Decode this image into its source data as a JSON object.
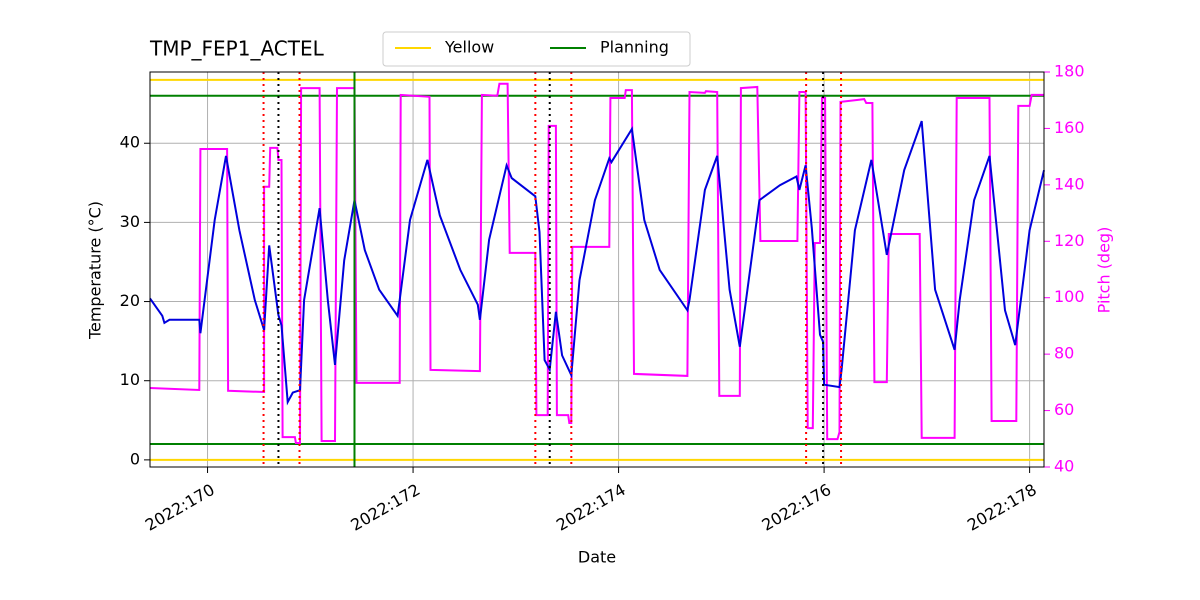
{
  "chart_data": {
    "type": "line",
    "title": "TMP_FEP1_ACTEL",
    "x_label": "Date",
    "y_label": "Temperature (°C)",
    "y2_label": "Pitch (deg)",
    "y2_color": "#ff00ff",
    "xlim": [
      169.44,
      178.14
    ],
    "ylim": [
      -0.9,
      49
    ],
    "y2lim": [
      40,
      180
    ],
    "xticks": [
      {
        "value": 170,
        "label": "2022:170"
      },
      {
        "value": 172,
        "label": "2022:172"
      },
      {
        "value": 174,
        "label": "2022:174"
      },
      {
        "value": 176,
        "label": "2022:176"
      },
      {
        "value": 178,
        "label": "2022:178"
      }
    ],
    "yticks": [
      0,
      10,
      20,
      30,
      40
    ],
    "y2ticks": [
      40,
      60,
      80,
      100,
      120,
      140,
      160,
      180
    ],
    "grid": true,
    "series": [
      {
        "color": "#0000dd",
        "x": [
          169.44,
          169.56,
          169.58,
          169.63,
          169.92,
          169.93,
          170.07,
          170.18,
          170.31,
          170.46,
          170.55,
          170.6,
          170.69,
          170.72,
          170.78,
          170.83,
          170.9,
          170.94,
          171.09,
          171.17,
          171.24,
          171.33,
          171.43,
          171.53,
          171.67,
          171.85,
          171.87,
          171.97,
          172.14,
          172.26,
          172.46,
          172.63,
          172.65,
          172.74,
          172.91,
          172.96,
          173.19,
          173.23,
          173.28,
          173.33,
          173.39,
          173.45,
          173.54,
          173.62,
          173.77,
          173.91,
          173.93,
          174.13,
          174.25,
          174.4,
          174.67,
          174.69,
          174.84,
          174.96,
          175.08,
          175.18,
          175.37,
          175.57,
          175.73,
          175.76,
          175.82,
          175.88,
          175.96,
          175.99,
          176.0,
          176.15,
          176.17,
          176.3,
          176.46,
          176.61,
          176.64,
          176.78,
          176.95,
          177.08,
          177.27,
          177.32,
          177.46,
          177.61,
          177.76,
          177.86,
          178.0,
          178.14
        ],
        "values": [
          20.4,
          18.2,
          17.3,
          17.7,
          17.7,
          16.0,
          30.3,
          38.4,
          29.0,
          20.2,
          16.4,
          27.1,
          18.3,
          17.0,
          7.3,
          8.5,
          8.8,
          20.2,
          31.8,
          20.2,
          12.0,
          25.2,
          32.8,
          26.5,
          21.5,
          18.2,
          20.2,
          30.3,
          37.9,
          30.9,
          24.0,
          19.6,
          17.7,
          27.8,
          37.2,
          35.6,
          33.3,
          28.8,
          12.6,
          11.4,
          18.7,
          13.2,
          10.7,
          22.7,
          32.8,
          38.1,
          37.6,
          41.8,
          30.3,
          24.0,
          18.9,
          20.2,
          34.1,
          38.4,
          21.5,
          14.3,
          32.8,
          34.7,
          35.8,
          34.1,
          37.2,
          29.3,
          15.8,
          14.9,
          9.5,
          9.2,
          11.4,
          29.0,
          37.9,
          25.9,
          27.8,
          36.6,
          42.8,
          21.5,
          13.9,
          20.2,
          32.8,
          38.4,
          18.9,
          14.5,
          29.0,
          36.6
        ]
      },
      {
        "color": "#ff00ff",
        "axis": "y2",
        "x": [
          169.44,
          169.92,
          169.93,
          170.19,
          170.2,
          170.55,
          170.55,
          170.6,
          170.61,
          170.68,
          170.69,
          170.72,
          170.73,
          170.85,
          170.86,
          170.9,
          170.91,
          171.09,
          171.11,
          171.24,
          171.26,
          171.43,
          171.45,
          171.87,
          171.88,
          172.16,
          172.17,
          172.65,
          172.67,
          172.82,
          172.84,
          172.92,
          172.94,
          173.19,
          173.2,
          173.31,
          173.32,
          173.39,
          173.4,
          173.51,
          173.52,
          173.54,
          173.55,
          173.91,
          173.92,
          174.06,
          174.07,
          174.13,
          174.15,
          174.67,
          174.69,
          174.84,
          174.85,
          174.96,
          174.98,
          175.18,
          175.19,
          175.35,
          175.38,
          175.74,
          175.76,
          175.82,
          175.84,
          175.89,
          175.91,
          175.96,
          175.98,
          176.01,
          176.03,
          176.13,
          176.15,
          176.16,
          176.33,
          176.39,
          176.41,
          176.47,
          176.49,
          176.61,
          176.63,
          176.93,
          176.95,
          177.27,
          177.29,
          177.61,
          177.63,
          177.87,
          177.89,
          178.0,
          178.02,
          178.14
        ],
        "values": [
          68,
          67.3,
          152.7,
          152.7,
          67,
          66.6,
          139.3,
          139.3,
          153.1,
          153.1,
          148.8,
          148.8,
          50.6,
          50.6,
          48.5,
          48.5,
          174.3,
          174.3,
          49.2,
          49.2,
          174.3,
          174.3,
          69.8,
          69.8,
          171.9,
          171.2,
          74.4,
          74,
          171.9,
          171.6,
          175.8,
          175.8,
          115.9,
          115.9,
          58.4,
          58.4,
          160.9,
          160.9,
          58.4,
          58.4,
          55.6,
          55.6,
          118,
          118,
          170.8,
          170.8,
          173.6,
          173.6,
          73,
          72.3,
          172.9,
          172.6,
          173.2,
          172.9,
          65.2,
          65.2,
          174.3,
          174.7,
          120.1,
          120.1,
          172.9,
          172.9,
          53.8,
          53.8,
          119.4,
          119.4,
          170.8,
          170.8,
          49.9,
          49.9,
          52.4,
          169.4,
          170.1,
          170.4,
          169,
          169,
          70.1,
          70.1,
          122.6,
          122.6,
          50.3,
          50.3,
          170.8,
          170.8,
          56.3,
          56.3,
          168,
          168,
          171.9,
          171.9
        ]
      }
    ],
    "limit_lines": [
      {
        "name": "Yellow",
        "color": "#ffd700",
        "values": [
          0,
          48
        ]
      },
      {
        "name": "Planning",
        "color": "#008000",
        "values": [
          2,
          46
        ]
      }
    ],
    "vlines": [
      {
        "x": 171.43,
        "color": "#008000",
        "style": "solid"
      },
      {
        "x": 170.545,
        "color": "#ff0000",
        "style": "dotted"
      },
      {
        "x": 170.895,
        "color": "#ff0000",
        "style": "dotted"
      },
      {
        "x": 173.19,
        "color": "#ff0000",
        "style": "dotted"
      },
      {
        "x": 173.54,
        "color": "#ff0000",
        "style": "dotted"
      },
      {
        "x": 175.825,
        "color": "#ff0000",
        "style": "dotted"
      },
      {
        "x": 176.165,
        "color": "#ff0000",
        "style": "dotted"
      },
      {
        "x": 170.69,
        "color": "#000000",
        "style": "dotted"
      },
      {
        "x": 173.33,
        "color": "#000000",
        "style": "dotted"
      },
      {
        "x": 175.99,
        "color": "#000000",
        "style": "dotted"
      }
    ]
  }
}
